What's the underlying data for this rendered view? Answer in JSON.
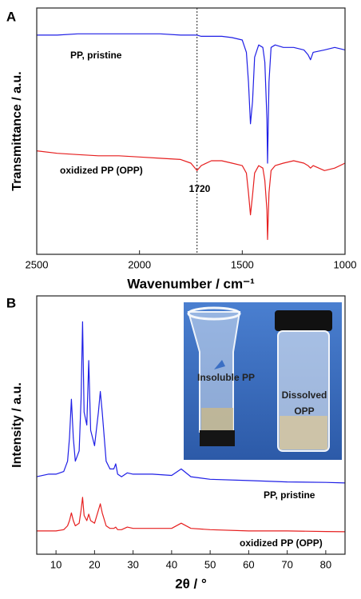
{
  "chart_data": [
    {
      "type": "line",
      "panel_label": "A",
      "ylabel": "Transmittance / a.u.",
      "xlabel": "Wavenumber / cm⁻¹",
      "xlim": [
        2500,
        1000
      ],
      "xticks": [
        2500,
        2000,
        1500,
        1000
      ],
      "ylim": [
        0,
        100
      ],
      "x": [
        2500,
        2400,
        2300,
        2200,
        2100,
        2000,
        1900,
        1800,
        1750,
        1720,
        1700,
        1650,
        1600,
        1550,
        1500,
        1480,
        1470,
        1460,
        1450,
        1440,
        1420,
        1400,
        1390,
        1380,
        1377,
        1370,
        1360,
        1340,
        1300,
        1250,
        1200,
        1180,
        1168,
        1155,
        1100,
        1050,
        1000
      ],
      "series": [
        {
          "name": "PP, pristine",
          "color": "#1f1fe6",
          "values": [
            89,
            89,
            89.5,
            89.5,
            89.5,
            89.5,
            89.5,
            89,
            89,
            89,
            88.5,
            88.5,
            88.5,
            88,
            87,
            82,
            70,
            53,
            62,
            80,
            85,
            84,
            78,
            55,
            37,
            70,
            84,
            85,
            84,
            84,
            83,
            81,
            79,
            82,
            83,
            84,
            83
          ]
        },
        {
          "name": "oxidized PP (OPP)",
          "color": "#e61f1f",
          "values": [
            42,
            41,
            40.5,
            40,
            40,
            39.5,
            39,
            38.5,
            37,
            34,
            36,
            38,
            38,
            37,
            36,
            33,
            25,
            16,
            24,
            33,
            36,
            35,
            30,
            18,
            6,
            25,
            34,
            36,
            37,
            38,
            37,
            36,
            35,
            36,
            34,
            35,
            37
          ]
        }
      ],
      "annotations": [
        {
          "text": "1720",
          "x": 1720
        }
      ]
    },
    {
      "type": "line",
      "panel_label": "B",
      "ylabel": "Intensity / a.u.",
      "xlabel": "2θ / °",
      "xlim": [
        5,
        85
      ],
      "xticks": [
        10,
        20,
        30,
        40,
        50,
        60,
        70,
        80
      ],
      "ylim": [
        0,
        100
      ],
      "x": [
        5,
        8,
        10,
        12,
        13,
        13.5,
        14,
        14.5,
        15,
        16,
        16.5,
        16.9,
        17.3,
        18,
        18.5,
        19,
        20,
        21,
        21.5,
        22,
        23,
        24,
        25,
        25.5,
        26,
        27,
        28.5,
        30,
        35,
        40,
        42.5,
        45,
        50,
        60,
        70,
        80,
        85
      ],
      "series": [
        {
          "name": "PP, pristine",
          "color": "#1f1fe6",
          "values": [
            30,
            31,
            31,
            32,
            36,
            45,
            60,
            45,
            36,
            40,
            60,
            90,
            55,
            50,
            75,
            48,
            42,
            55,
            63,
            55,
            36,
            33,
            33,
            35,
            31,
            30,
            31.5,
            31,
            31,
            30.5,
            33,
            30,
            29,
            28.5,
            28,
            27.8,
            27.6
          ]
        },
        {
          "name": "oxidized PP (OPP)",
          "color": "#e61f1f",
          "values": [
            9,
            9,
            9,
            9.5,
            11,
            13,
            16,
            13,
            11,
            12,
            17,
            22,
            15,
            13,
            15.5,
            13,
            12,
            17,
            19.5,
            16,
            11,
            10,
            10,
            10.5,
            9.5,
            9.5,
            10.5,
            10,
            10,
            10,
            12,
            10,
            9.5,
            9,
            9,
            8.8,
            8.7
          ]
        }
      ],
      "inset_labels": [
        "Insoluble PP",
        "Dissolved OPP"
      ]
    }
  ]
}
